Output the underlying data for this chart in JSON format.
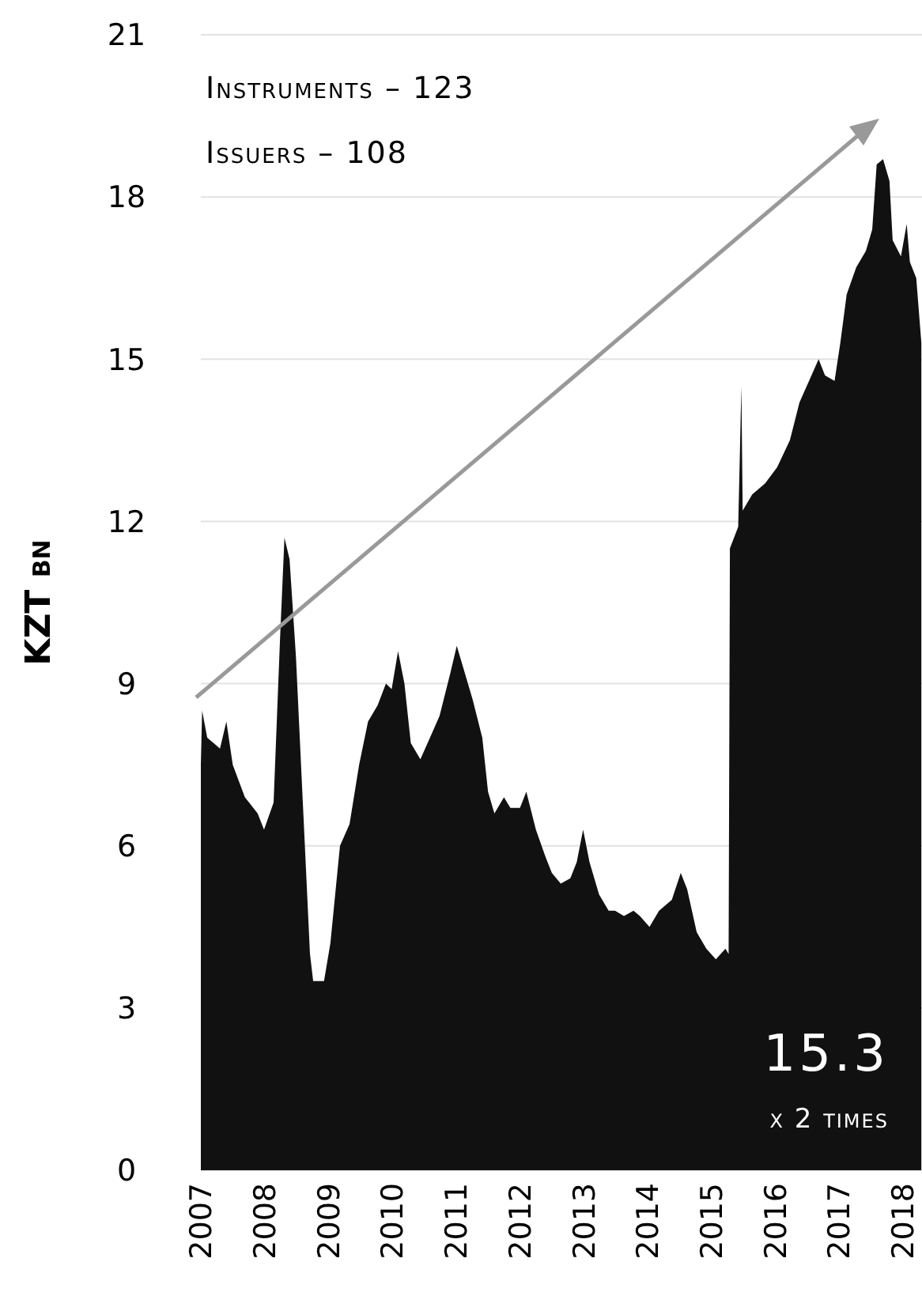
{
  "chart_data": {
    "type": "area",
    "ylabel": "KZT bn",
    "annotations": [
      "Instruments – 123",
      "Issuers – 108",
      "15.3",
      "x 2 times"
    ],
    "x": [
      2007.0,
      2007.02,
      2007.1,
      2007.2,
      2007.3,
      2007.4,
      2007.5,
      2007.69,
      2007.89,
      2007.99,
      2008.14,
      2008.24,
      2008.31,
      2008.39,
      2008.49,
      2008.61,
      2008.71,
      2008.76,
      2008.93,
      2009.03,
      2009.18,
      2009.33,
      2009.48,
      2009.62,
      2009.77,
      2009.9,
      2009.99,
      2010.09,
      2010.19,
      2010.29,
      2010.44,
      2010.59,
      2010.74,
      2010.91,
      2011.01,
      2011.11,
      2011.26,
      2011.41,
      2011.5,
      2011.6,
      2011.75,
      2011.85,
      2012.0,
      2012.1,
      2012.25,
      2012.4,
      2012.5,
      2012.64,
      2012.79,
      2012.89,
      2012.99,
      2013.09,
      2013.24,
      2013.39,
      2013.49,
      2013.63,
      2013.78,
      2013.88,
      2014.03,
      2014.18,
      2014.38,
      2014.52,
      2014.62,
      2014.77,
      2014.92,
      2015.07,
      2015.22,
      2015.27,
      2015.29,
      2015.42,
      2015.47,
      2015.49,
      2015.64,
      2015.84,
      2016.03,
      2016.23,
      2016.38,
      2016.53,
      2016.68,
      2016.78,
      2016.93,
      2017.02,
      2017.12,
      2017.27,
      2017.42,
      2017.52,
      2017.59,
      2017.69,
      2017.79,
      2017.84,
      2017.97,
      2018.06,
      2018.11,
      2018.21,
      2018.29
    ],
    "series": [
      {
        "color": "#111111",
        "values": [
          7.5,
          8.5,
          8.0,
          7.9,
          7.8,
          8.3,
          7.5,
          6.9,
          6.6,
          6.3,
          6.8,
          9.8,
          11.7,
          11.3,
          9.5,
          6.5,
          4.0,
          3.5,
          3.5,
          4.2,
          6.0,
          6.4,
          7.5,
          8.3,
          8.6,
          9.0,
          8.9,
          9.6,
          9.0,
          7.9,
          7.6,
          8.0,
          8.4,
          9.2,
          9.7,
          9.3,
          8.7,
          8.0,
          7.0,
          6.6,
          6.9,
          6.7,
          6.7,
          7.0,
          6.3,
          5.8,
          5.5,
          5.3,
          5.4,
          5.7,
          6.3,
          5.7,
          5.1,
          4.8,
          4.8,
          4.7,
          4.8,
          4.7,
          4.5,
          4.8,
          5.0,
          5.5,
          5.2,
          4.4,
          4.1,
          3.9,
          4.1,
          4.0,
          11.5,
          11.9,
          14.5,
          12.2,
          12.5,
          12.7,
          13.0,
          13.5,
          14.2,
          14.6,
          15.0,
          14.7,
          14.6,
          15.3,
          16.2,
          16.7,
          17.0,
          17.4,
          18.6,
          18.7,
          18.3,
          17.2,
          16.9,
          17.5,
          16.8,
          16.5,
          15.3
        ]
      }
    ],
    "xlim": [
      2007,
      2018.3
    ],
    "xticks": [
      2007,
      2008,
      2009,
      2010,
      2011,
      2012,
      2013,
      2014,
      2015,
      2016,
      2017,
      2018
    ],
    "ylim": [
      0,
      21
    ],
    "yticks": [
      0,
      3,
      6,
      9,
      12,
      15,
      18,
      21
    ],
    "grid": "y"
  }
}
